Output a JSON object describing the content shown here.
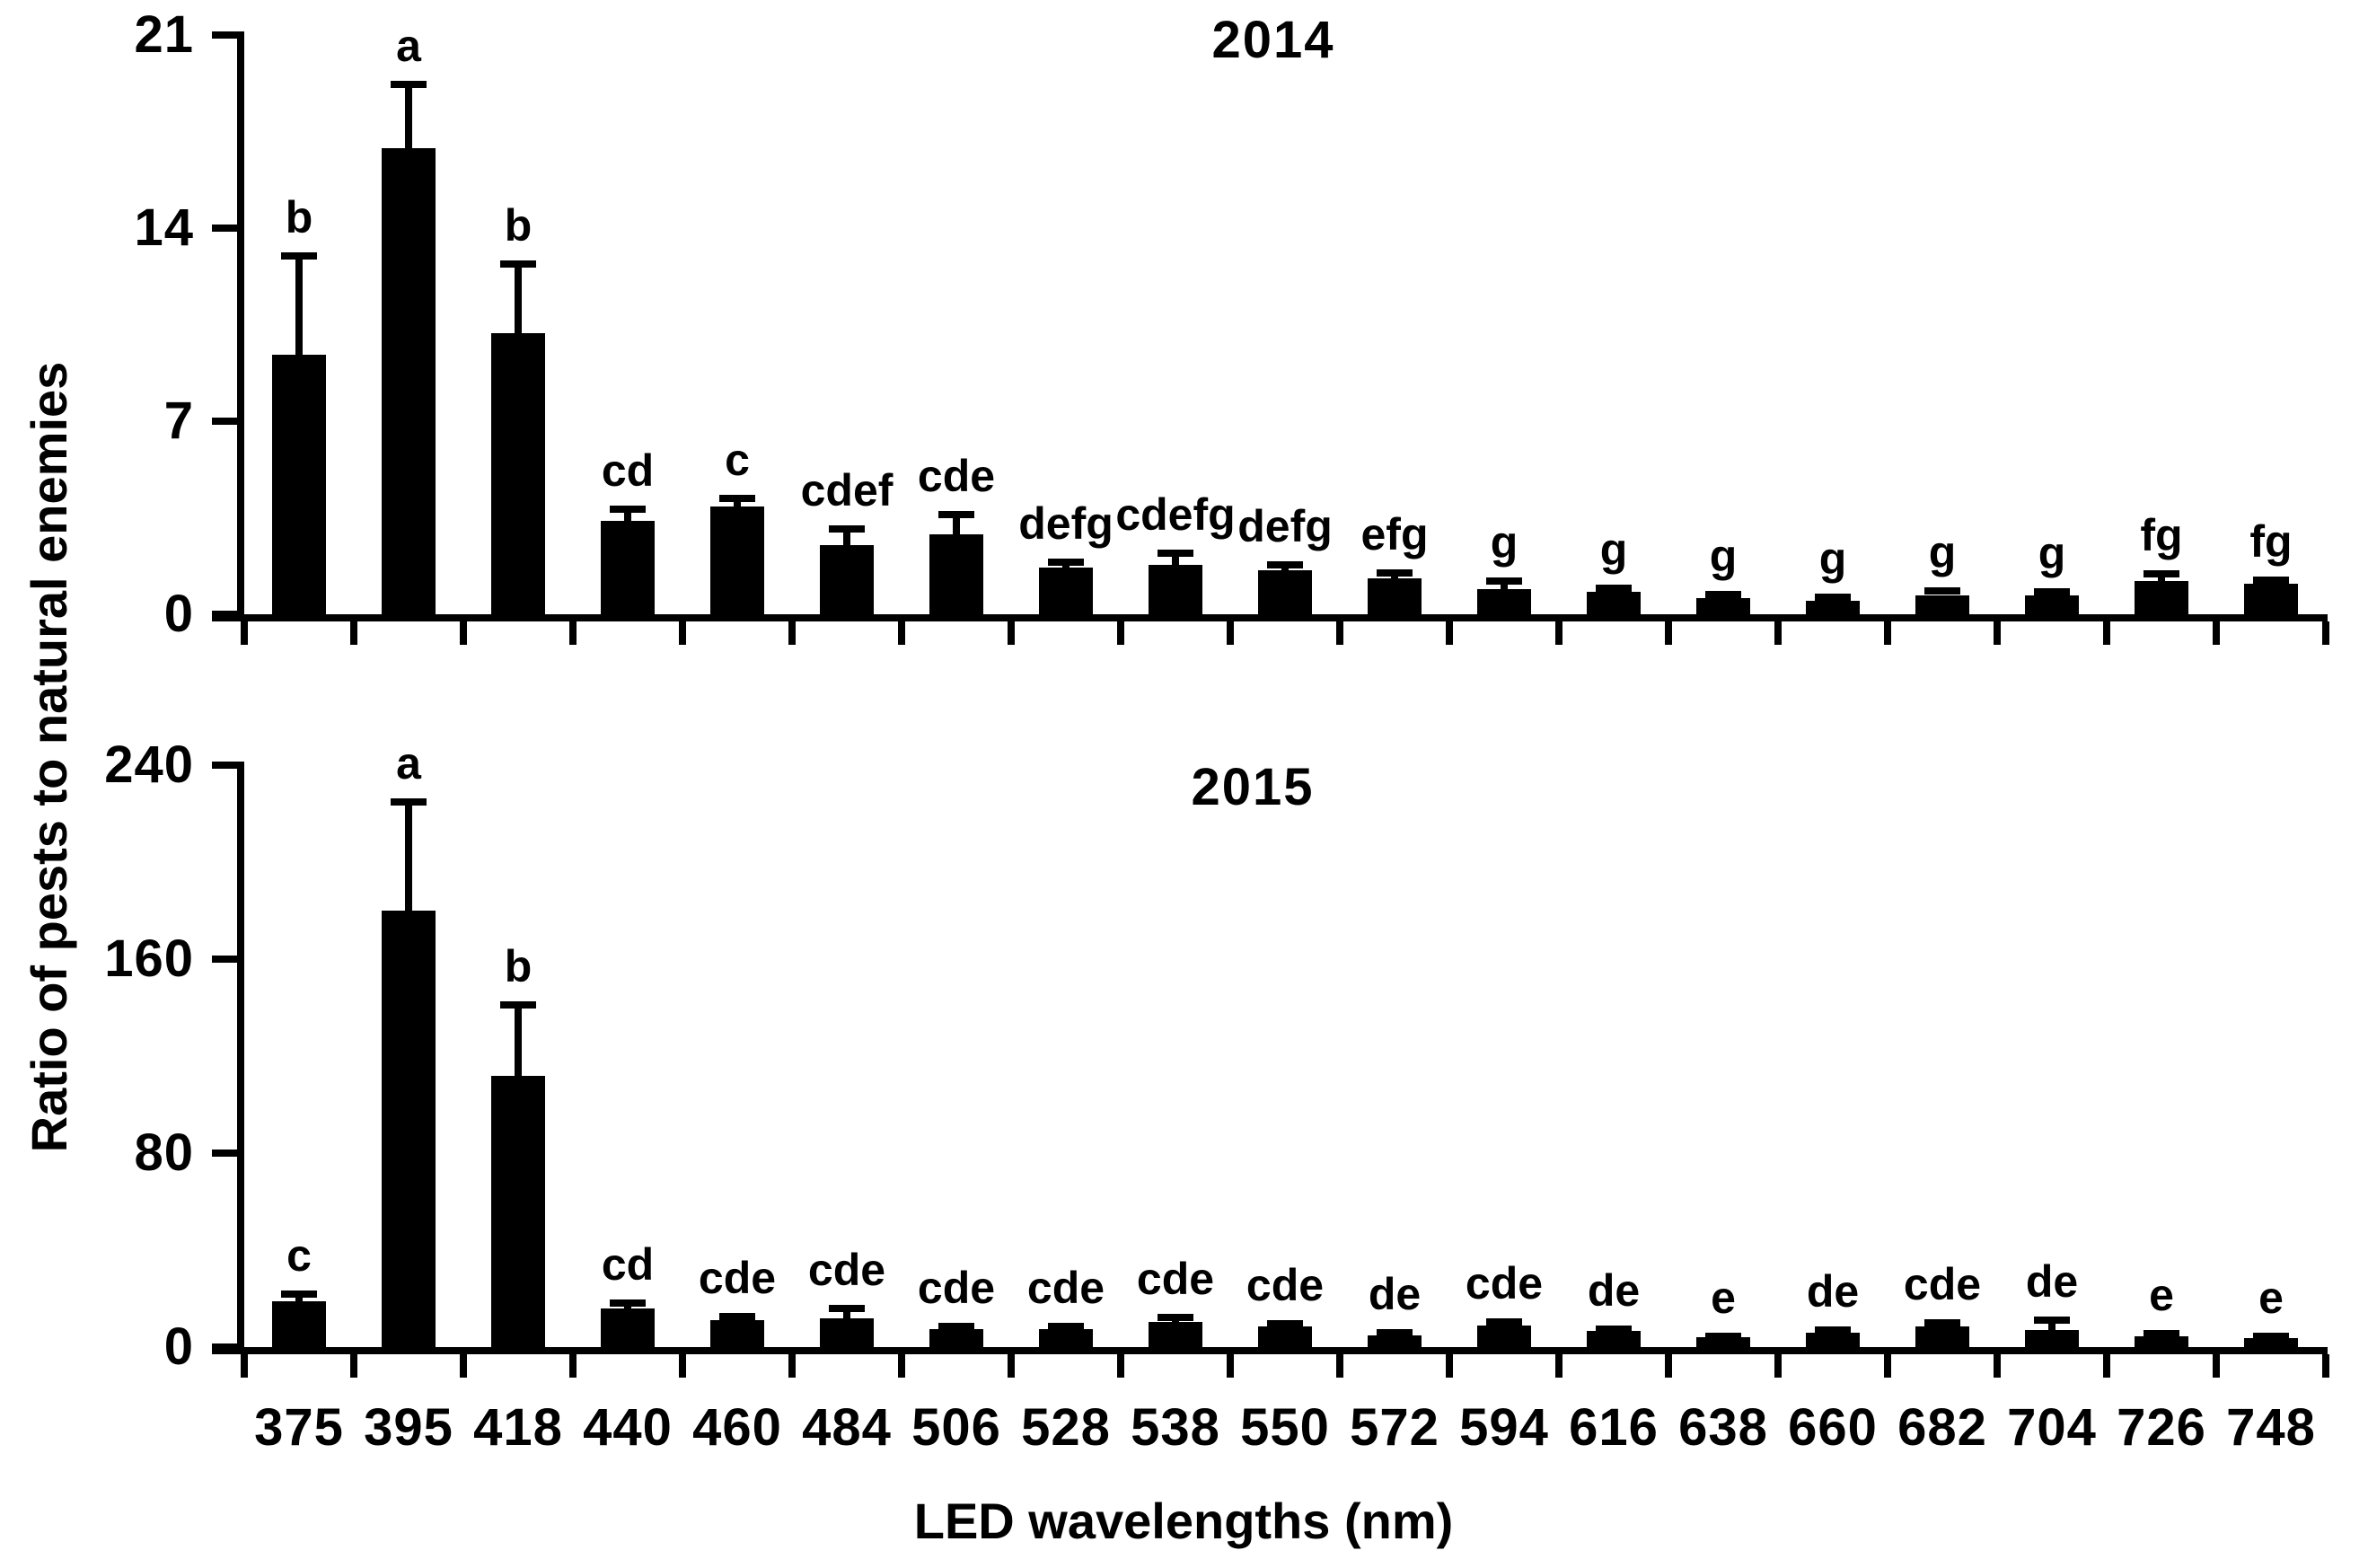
{
  "figure": {
    "y_axis_label": "Ratio of pests to natural enemies",
    "x_axis_label": "LED wavelengths (nm)",
    "foreground_color": "#000000",
    "background_color": "#ffffff"
  },
  "chart_data": [
    {
      "type": "bar",
      "title": "2014",
      "categories": [
        "375",
        "395",
        "418",
        "440",
        "460",
        "484",
        "506",
        "528",
        "538",
        "550",
        "572",
        "594",
        "616",
        "638",
        "660",
        "682",
        "704",
        "726",
        "748"
      ],
      "values": [
        9.4,
        16.9,
        10.2,
        3.4,
        3.9,
        2.5,
        2.9,
        1.7,
        1.8,
        1.6,
        1.3,
        0.9,
        0.8,
        0.6,
        0.5,
        0.7,
        0.7,
        1.2,
        1.1
      ],
      "errors": [
        3.6,
        2.3,
        2.5,
        0.4,
        0.3,
        0.6,
        0.7,
        0.2,
        0.4,
        0.2,
        0.2,
        0.3,
        0.15,
        0.12,
        0.12,
        0.15,
        0.12,
        0.25,
        0.15
      ],
      "sig_letters": [
        "b",
        "a",
        "b",
        "cd",
        "c",
        "cdef",
        "cde",
        "defg",
        "cdefg",
        "defg",
        "efg",
        "g",
        "g",
        "g",
        "g",
        "g",
        "g",
        "fg",
        "fg"
      ],
      "ylabel": "Ratio of pests to natural enemies",
      "ylim": [
        0,
        21
      ],
      "yticks": [
        21,
        14,
        7,
        0
      ],
      "x_tick_labels_visible": false,
      "grid": false,
      "legend": "none",
      "bar_color": "#000000"
    },
    {
      "type": "bar",
      "title": "2015",
      "categories": [
        "375",
        "395",
        "418",
        "440",
        "460",
        "484",
        "506",
        "528",
        "538",
        "550",
        "572",
        "594",
        "616",
        "638",
        "660",
        "682",
        "704",
        "726",
        "748"
      ],
      "values": [
        19,
        180,
        112,
        16,
        11,
        12,
        7.5,
        7.5,
        10.5,
        8.5,
        5,
        9,
        6.5,
        4,
        6,
        8.7,
        7,
        4.6,
        3.7
      ],
      "errors": [
        3,
        45,
        29,
        2,
        1.5,
        4,
        1.2,
        1.2,
        1.6,
        1.2,
        0.8,
        1.3,
        0.9,
        0.6,
        0.9,
        1.3,
        4,
        0.8,
        0.6
      ],
      "sig_letters": [
        "c",
        "a",
        "b",
        "cd",
        "cde",
        "cde",
        "cde",
        "cde",
        "cde",
        "cde",
        "de",
        "cde",
        "de",
        "e",
        "de",
        "cde",
        "de",
        "e",
        "e"
      ],
      "xlabel": "LED wavelengths (nm)",
      "ylabel": "Ratio of pests to natural enemies",
      "ylim": [
        0,
        240
      ],
      "yticks": [
        240,
        160,
        80,
        0
      ],
      "x_tick_labels_visible": true,
      "grid": false,
      "legend": "none",
      "bar_color": "#000000"
    }
  ]
}
